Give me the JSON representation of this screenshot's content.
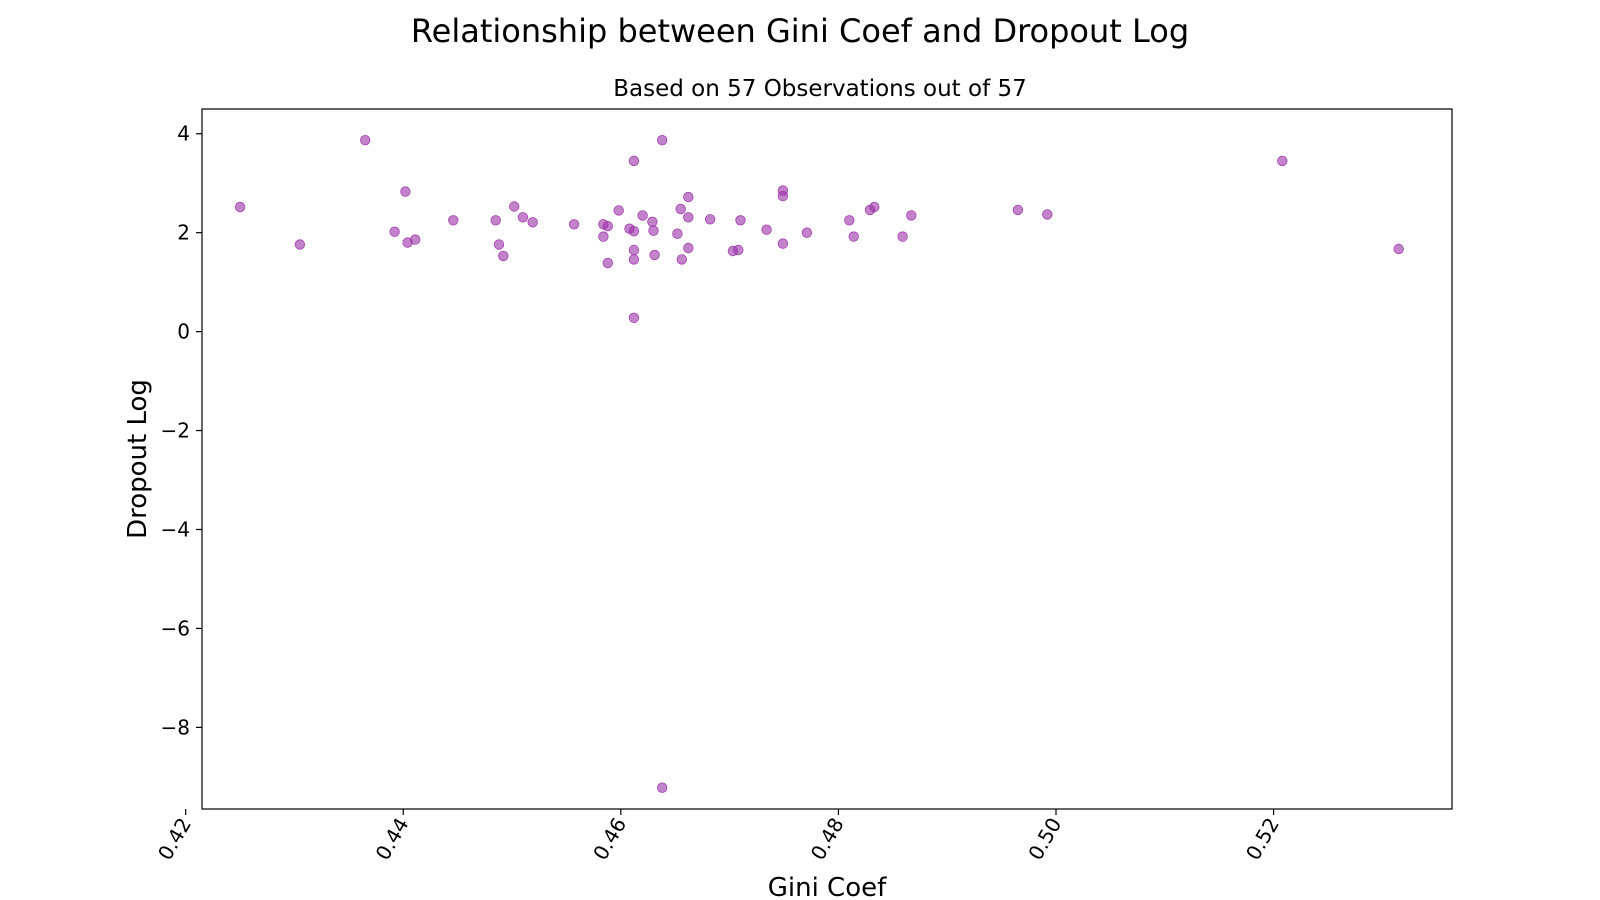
{
  "chart_data": {
    "type": "scatter",
    "title": "Relationship between Gini Coef and Dropout Log",
    "subtitle": "Based on 57 Observations out of 57",
    "xlabel": "Gini Coef",
    "ylabel": "Dropout Log",
    "xlim": [
      0.4215,
      0.5364
    ],
    "ylim": [
      -9.65,
      4.5
    ],
    "xticks": [
      0.42,
      0.44,
      0.46,
      0.48,
      0.5,
      0.52
    ],
    "xtick_labels": [
      "0.42",
      "0.44",
      "0.46",
      "0.48",
      "0.50",
      "0.52"
    ],
    "yticks": [
      4,
      2,
      0,
      -2,
      -4,
      -6,
      -8
    ],
    "ytick_labels": [
      "4",
      "2",
      "0",
      "−2",
      "−4",
      "−6",
      "−8"
    ],
    "marker_color": "#9b30a8",
    "marker_alpha": 0.6,
    "grid": false,
    "points": [
      [
        0.425,
        2.52
      ],
      [
        0.4305,
        1.76
      ],
      [
        0.4365,
        3.87
      ],
      [
        0.4392,
        2.02
      ],
      [
        0.4402,
        2.83
      ],
      [
        0.4404,
        1.8
      ],
      [
        0.4411,
        1.86
      ],
      [
        0.4446,
        2.25
      ],
      [
        0.4485,
        2.25
      ],
      [
        0.4488,
        1.76
      ],
      [
        0.4492,
        1.53
      ],
      [
        0.4502,
        2.53
      ],
      [
        0.451,
        2.31
      ],
      [
        0.4519,
        2.21
      ],
      [
        0.4557,
        2.17
      ],
      [
        0.4584,
        2.17
      ],
      [
        0.4584,
        1.92
      ],
      [
        0.4588,
        2.13
      ],
      [
        0.4588,
        1.39
      ],
      [
        0.4598,
        2.45
      ],
      [
        0.4608,
        2.08
      ],
      [
        0.4612,
        3.45
      ],
      [
        0.4612,
        2.03
      ],
      [
        0.4612,
        1.65
      ],
      [
        0.4612,
        1.46
      ],
      [
        0.4612,
        0.28
      ],
      [
        0.462,
        2.35
      ],
      [
        0.4629,
        2.22
      ],
      [
        0.463,
        2.04
      ],
      [
        0.4631,
        1.55
      ],
      [
        0.4638,
        3.87
      ],
      [
        0.4638,
        -9.22
      ],
      [
        0.4652,
        1.98
      ],
      [
        0.4655,
        2.48
      ],
      [
        0.4656,
        1.46
      ],
      [
        0.4662,
        2.72
      ],
      [
        0.4662,
        2.31
      ],
      [
        0.4662,
        1.69
      ],
      [
        0.4682,
        2.27
      ],
      [
        0.4703,
        1.63
      ],
      [
        0.4708,
        1.65
      ],
      [
        0.471,
        2.25
      ],
      [
        0.4734,
        2.06
      ],
      [
        0.4749,
        2.85
      ],
      [
        0.4749,
        2.74
      ],
      [
        0.4749,
        1.78
      ],
      [
        0.4771,
        2.0
      ],
      [
        0.481,
        2.25
      ],
      [
        0.4814,
        1.92
      ],
      [
        0.4829,
        2.46
      ],
      [
        0.4833,
        2.52
      ],
      [
        0.4859,
        1.92
      ],
      [
        0.4867,
        2.35
      ],
      [
        0.4965,
        2.46
      ],
      [
        0.4992,
        2.37
      ],
      [
        0.5208,
        3.45
      ],
      [
        0.5315,
        1.67
      ]
    ]
  }
}
